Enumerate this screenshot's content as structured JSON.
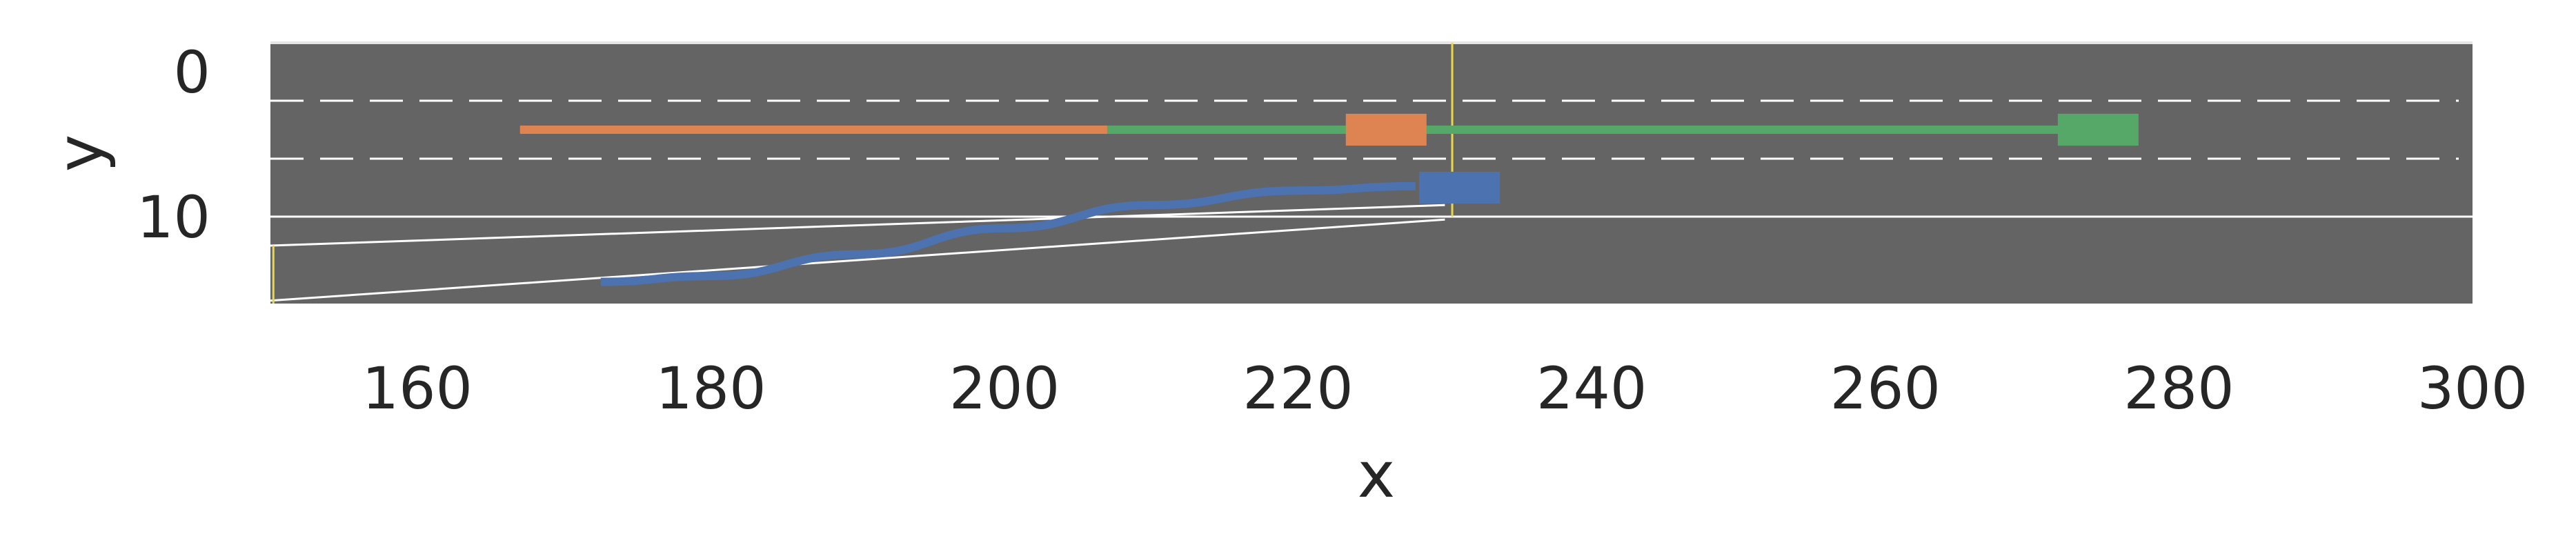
{
  "chart_data": {
    "type": "line",
    "title": "",
    "xlabel": "x",
    "ylabel": "y",
    "xlim": [
      150,
      300
    ],
    "ylim": [
      16,
      -2
    ],
    "y_inverted": true,
    "grid": false,
    "legend": "none",
    "x_ticks": [
      160,
      180,
      200,
      220,
      240,
      260,
      280,
      300
    ],
    "y_ticks": [
      0,
      10
    ],
    "road": {
      "color": "#646464",
      "lane_line_color": "#ffffff",
      "lanes": [
        {
          "y_top": -2,
          "y_bottom": 2,
          "style": "dashed-bottom"
        },
        {
          "y_top": 2,
          "y_bottom": 6,
          "style": "dashed-bottom"
        },
        {
          "y_top": 6,
          "y_bottom": 10,
          "style": "solid-bottom"
        }
      ],
      "merge_ramp": {
        "upper_edge": [
          [
            150,
            12.0
          ],
          [
            230,
            9.2
          ]
        ],
        "lower_edge": [
          [
            150,
            15.8
          ],
          [
            230,
            10.2
          ]
        ]
      },
      "markers": [
        {
          "x": 230.5,
          "y_from": -2,
          "y_to": 10,
          "color": "#e6d84a"
        },
        {
          "x": 150.2,
          "y_from": 12,
          "y_to": 16,
          "color": "#e6d84a"
        }
      ]
    },
    "series": [
      {
        "color": "#dd8452",
        "points": [
          [
            167,
            4
          ],
          [
            207,
            4
          ]
        ],
        "vehicle": {
          "x": 226,
          "y": 4,
          "length": 5.5,
          "width": 2.2
        }
      },
      {
        "color": "#55a868",
        "points": [
          [
            207,
            4
          ],
          [
            272,
            4
          ]
        ],
        "vehicle": {
          "x": 274.5,
          "y": 4,
          "length": 5.5,
          "width": 2.2
        }
      },
      {
        "color": "#4c72b0",
        "points": [
          [
            172.5,
            14.5
          ],
          [
            180,
            14.1
          ],
          [
            190,
            12.6
          ],
          [
            200,
            10.8
          ],
          [
            210,
            9.2
          ],
          [
            220,
            8.2
          ],
          [
            228,
            7.9
          ]
        ],
        "vehicle": {
          "x": 231,
          "y": 8,
          "length": 5.5,
          "width": 2.2
        }
      }
    ]
  }
}
